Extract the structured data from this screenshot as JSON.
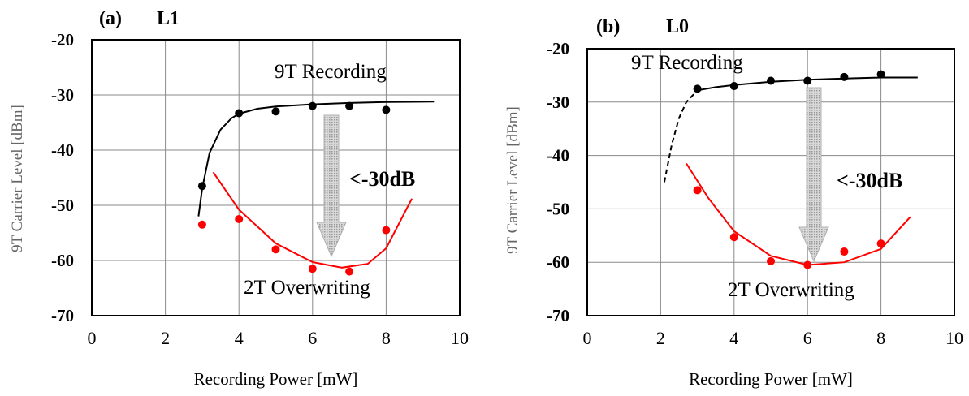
{
  "chart_data": [
    {
      "type": "scatter",
      "panel_label": "(a)",
      "title": "L1",
      "xlabel": "Recording Power [mW]",
      "ylabel": "9T Carrier Level  [dBm]",
      "xlim": [
        0,
        10
      ],
      "ylim": [
        -70,
        -20
      ],
      "xticks": [
        "0",
        "2",
        "4",
        "6",
        "8",
        "10"
      ],
      "yticks": [
        "-20",
        "-30",
        "-40",
        "-50",
        "-60",
        "-70"
      ],
      "grid": true,
      "annotations": {
        "top": "9T Recording",
        "bottom": "2T Overwriting",
        "arrow": "<-30dB"
      },
      "series": [
        {
          "name": "9T Recording",
          "color": "#000000",
          "x": [
            3.0,
            4.0,
            5.0,
            6.0,
            7.0,
            8.0
          ],
          "y": [
            -46.5,
            -33.3,
            -33.0,
            -32.0,
            -32.0,
            -32.7
          ],
          "fit": {
            "x": [
              2.9,
              3.0,
              3.2,
              3.5,
              3.8,
              4.0,
              4.5,
              5.0,
              6.0,
              7.0,
              8.0,
              9.3
            ],
            "y": [
              -52.0,
              -47.0,
              -40.5,
              -36.3,
              -34.2,
              -33.4,
              -32.5,
              -32.1,
              -31.7,
              -31.45,
              -31.3,
              -31.2
            ]
          }
        },
        {
          "name": "2T Overwriting",
          "color": "#ff0000",
          "x": [
            3.0,
            4.0,
            5.0,
            6.0,
            7.0,
            8.0
          ],
          "y": [
            -53.5,
            -52.5,
            -58.0,
            -61.5,
            -62.0,
            -54.5
          ],
          "fit": {
            "x": [
              3.3,
              4.0,
              5.0,
              6.0,
              6.8,
              7.5,
              8.0,
              8.7
            ],
            "y": [
              -44.0,
              -50.8,
              -56.9,
              -60.3,
              -61.3,
              -60.6,
              -57.8,
              -48.8
            ]
          }
        }
      ]
    },
    {
      "type": "scatter",
      "panel_label": "(b)",
      "title": "L0",
      "xlabel": "Recording Power [mW]",
      "ylabel": "9T Carrier Level  [dBm]",
      "xlim": [
        0,
        10
      ],
      "ylim": [
        -70,
        -20
      ],
      "xticks": [
        "0",
        "2",
        "4",
        "6",
        "8",
        "10"
      ],
      "yticks": [
        "-20",
        "-30",
        "-40",
        "-50",
        "-60",
        "-70"
      ],
      "grid": true,
      "annotations": {
        "top": "9T Recording",
        "bottom": "2T Overwriting",
        "arrow": "<-30dB"
      },
      "series": [
        {
          "name": "9T Recording",
          "color": "#000000",
          "x": [
            3.0,
            4.0,
            5.0,
            6.0,
            7.0,
            8.0
          ],
          "y": [
            -27.5,
            -27.0,
            -26.0,
            -26.0,
            -25.3,
            -24.8
          ],
          "fit": {
            "x": [
              3.0,
              3.5,
              4.0,
              5.0,
              6.0,
              7.0,
              8.0,
              9.0
            ],
            "y": [
              -27.8,
              -27.2,
              -26.8,
              -26.2,
              -25.8,
              -25.6,
              -25.4,
              -25.4
            ]
          },
          "extrapolation": {
            "x": [
              2.1,
              2.3,
              2.5,
              2.7,
              3.0
            ],
            "y": [
              -45.0,
              -38.0,
              -33.0,
              -30.0,
              -27.8
            ]
          }
        },
        {
          "name": "2T Overwriting",
          "color": "#ff0000",
          "x": [
            3.0,
            4.0,
            5.0,
            6.0,
            7.0,
            8.0
          ],
          "y": [
            -46.5,
            -55.3,
            -59.8,
            -60.5,
            -58.0,
            -56.5
          ],
          "fit": {
            "x": [
              2.7,
              3.3,
              4.0,
              5.0,
              6.0,
              7.0,
              8.0,
              8.8
            ],
            "y": [
              -41.5,
              -48.0,
              -54.2,
              -58.8,
              -60.5,
              -60.0,
              -57.5,
              -51.5
            ]
          }
        }
      ]
    }
  ]
}
